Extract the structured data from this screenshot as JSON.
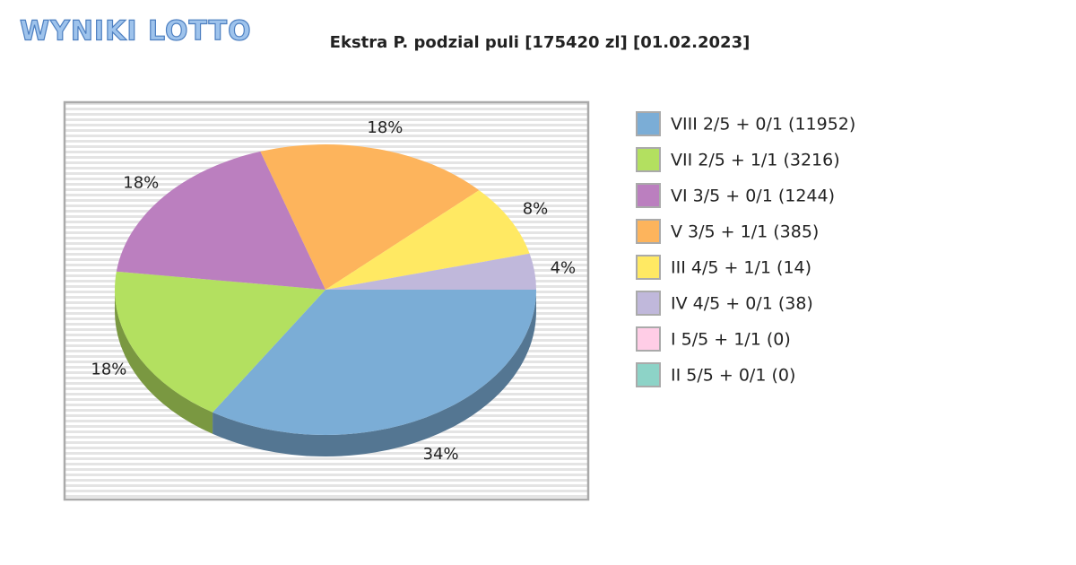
{
  "logo": "WYNIKI LOTTO",
  "chart_data": {
    "type": "pie3d",
    "title": "Ekstra P. podzial puli [175420 zl] [01.02.2023]",
    "categories": [
      "VIII 2/5 + 0/1 (11952)",
      "VII 2/5 + 1/1 (3216)",
      "VI 3/5 + 0/1 (1244)",
      "V 3/5 + 1/1 (385)",
      "III 4/5 + 1/1 (14)",
      "IV 4/5 + 0/1 (38)",
      "I 5/5 + 1/1 (0)",
      "II 5/5 + 0/1 (0)"
    ],
    "values": [
      34,
      18,
      18,
      18,
      8,
      4,
      0,
      0
    ],
    "value_labels": [
      "34%",
      "18%",
      "18%",
      "18%",
      "8%",
      "4%",
      null,
      null
    ],
    "colors": [
      "#7badd6",
      "#b3e060",
      "#bb7fbf",
      "#fdb45c",
      "#ffe963",
      "#c0b8db",
      "#ffcde6",
      "#8dd3c7"
    ],
    "legend": "right"
  }
}
